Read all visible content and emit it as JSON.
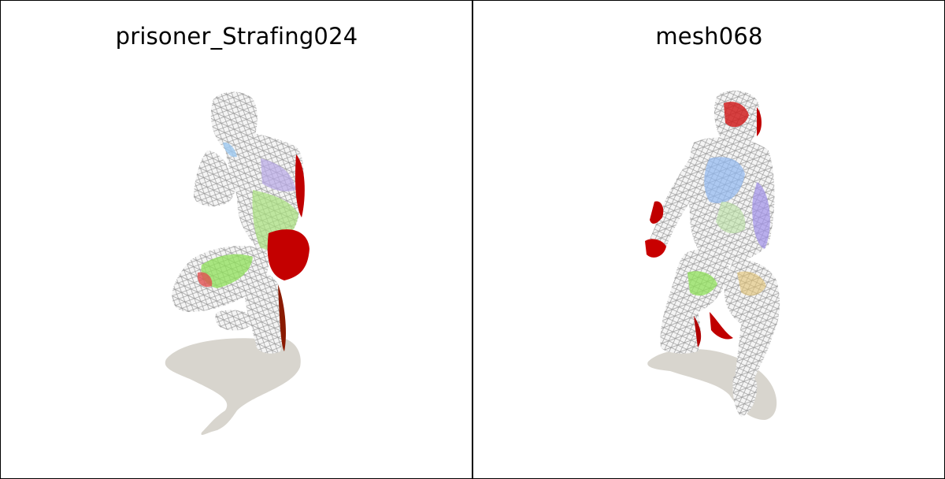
{
  "panels": [
    {
      "title": "prisoner_Strafing024"
    },
    {
      "title": "mesh068"
    }
  ]
}
